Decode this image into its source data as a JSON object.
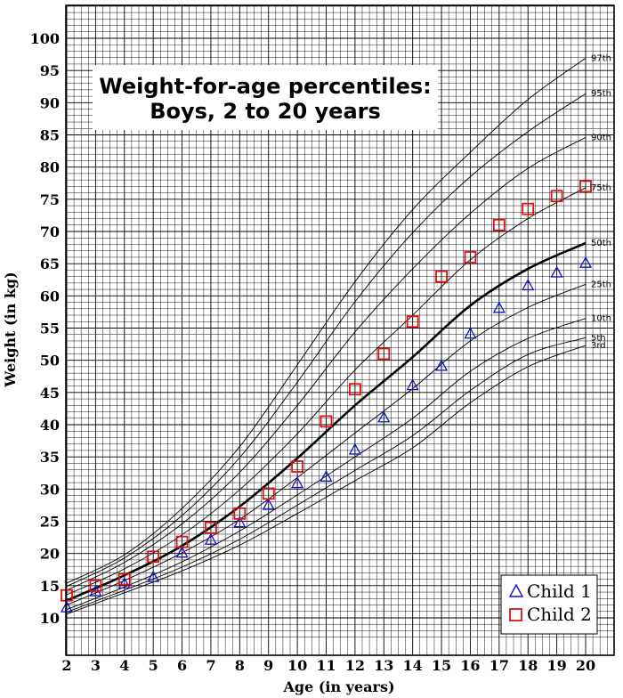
{
  "chart_data": {
    "type": "scatter",
    "title": "Weight-for-age percentiles:",
    "subtitle": "Boys, 2 to 20 years",
    "xlabel": "Age (in years)",
    "ylabel": "Weight (in kg)",
    "xlim": [
      2,
      20
    ],
    "ylim": [
      10,
      100
    ],
    "x_ticks": [
      "2",
      "3",
      "4",
      "5",
      "6",
      "7",
      "8",
      "9",
      "10",
      "11",
      "12",
      "13",
      "14",
      "15",
      "16",
      "17",
      "18",
      "19",
      "20"
    ],
    "y_ticks": [
      "10",
      "15",
      "20",
      "25",
      "30",
      "35",
      "40",
      "45",
      "50",
      "55",
      "60",
      "65",
      "70",
      "75",
      "80",
      "85",
      "90",
      "95",
      "100"
    ],
    "grid": true,
    "legend_position": "bottom-right",
    "colors": {
      "child1": "#1010d0",
      "child2": "#e01010",
      "curves": "#000000"
    },
    "percentile_curves": [
      {
        "name": "3rd",
        "x": [
          2,
          4,
          6,
          8,
          10,
          12,
          14,
          16,
          18,
          20
        ],
        "y": [
          10.6,
          13.9,
          17.3,
          21.3,
          26.2,
          31.3,
          36.4,
          43.4,
          49.0,
          52.3
        ]
      },
      {
        "name": "5th",
        "x": [
          2,
          4,
          6,
          8,
          10,
          12,
          14,
          16,
          18,
          20
        ],
        "y": [
          10.9,
          14.3,
          17.9,
          22.2,
          27.5,
          32.9,
          38.3,
          45.3,
          50.9,
          53.5
        ]
      },
      {
        "name": "10th",
        "x": [
          2,
          4,
          6,
          8,
          10,
          12,
          14,
          16,
          18,
          20
        ],
        "y": [
          11.3,
          14.8,
          18.7,
          23.5,
          29.1,
          35.0,
          41.0,
          48.3,
          53.4,
          56.5
        ]
      },
      {
        "name": "25th",
        "x": [
          2,
          4,
          6,
          8,
          10,
          12,
          14,
          16,
          18,
          20
        ],
        "y": [
          12.0,
          15.8,
          20.1,
          25.3,
          31.8,
          38.7,
          45.6,
          53.0,
          58.2,
          61.8
        ]
      },
      {
        "name": "50th",
        "x": [
          2,
          4,
          6,
          8,
          10,
          12,
          14,
          16,
          18,
          20
        ],
        "y": [
          12.7,
          16.6,
          21.2,
          27.3,
          34.8,
          43.0,
          50.5,
          58.5,
          64.2,
          68.2
        ]
      },
      {
        "name": "75th",
        "x": [
          2,
          4,
          6,
          8,
          10,
          12,
          14,
          16,
          18,
          20
        ],
        "y": [
          13.6,
          17.6,
          22.9,
          29.9,
          38.6,
          48.5,
          57.0,
          65.6,
          72.0,
          76.8
        ]
      },
      {
        "name": "90th",
        "x": [
          2,
          4,
          6,
          8,
          10,
          12,
          14,
          16,
          18,
          20
        ],
        "y": [
          14.3,
          18.6,
          24.6,
          32.6,
          43.0,
          54.4,
          64.2,
          72.8,
          79.8,
          84.6
        ]
      },
      {
        "name": "95th",
        "x": [
          2,
          4,
          6,
          8,
          10,
          12,
          14,
          16,
          18,
          20
        ],
        "y": [
          14.9,
          19.3,
          25.9,
          34.9,
          46.6,
          59.1,
          69.8,
          78.5,
          85.5,
          91.4
        ]
      },
      {
        "name": "97th",
        "x": [
          2,
          4,
          6,
          8,
          10,
          12,
          14,
          16,
          18,
          20
        ],
        "y": [
          15.4,
          19.8,
          27.0,
          36.6,
          49.3,
          62.2,
          73.4,
          82.3,
          90.5,
          96.9
        ]
      }
    ],
    "series": [
      {
        "name": "Child 1",
        "marker": "triangle",
        "x": [
          2,
          3,
          4,
          5,
          6,
          7,
          8,
          9,
          10,
          11,
          12,
          13,
          14,
          15,
          16,
          17,
          18,
          19,
          20
        ],
        "y": [
          11.5,
          14,
          15.2,
          16.2,
          20,
          22,
          24.7,
          27.4,
          30.8,
          31.8,
          36,
          41,
          46,
          49,
          54,
          58,
          61.5,
          63.5,
          65
        ]
      },
      {
        "name": "Child 2",
        "marker": "square",
        "x": [
          2,
          3,
          4,
          5,
          6,
          7,
          8,
          9,
          10,
          11,
          12,
          13,
          14,
          15,
          16,
          17,
          18,
          19,
          20
        ],
        "y": [
          13.5,
          15,
          16,
          19.5,
          21.8,
          24,
          26.2,
          29.3,
          33.5,
          40.5,
          45.5,
          51,
          56,
          63,
          66,
          71,
          73.5,
          75.5,
          77
        ]
      }
    ]
  }
}
